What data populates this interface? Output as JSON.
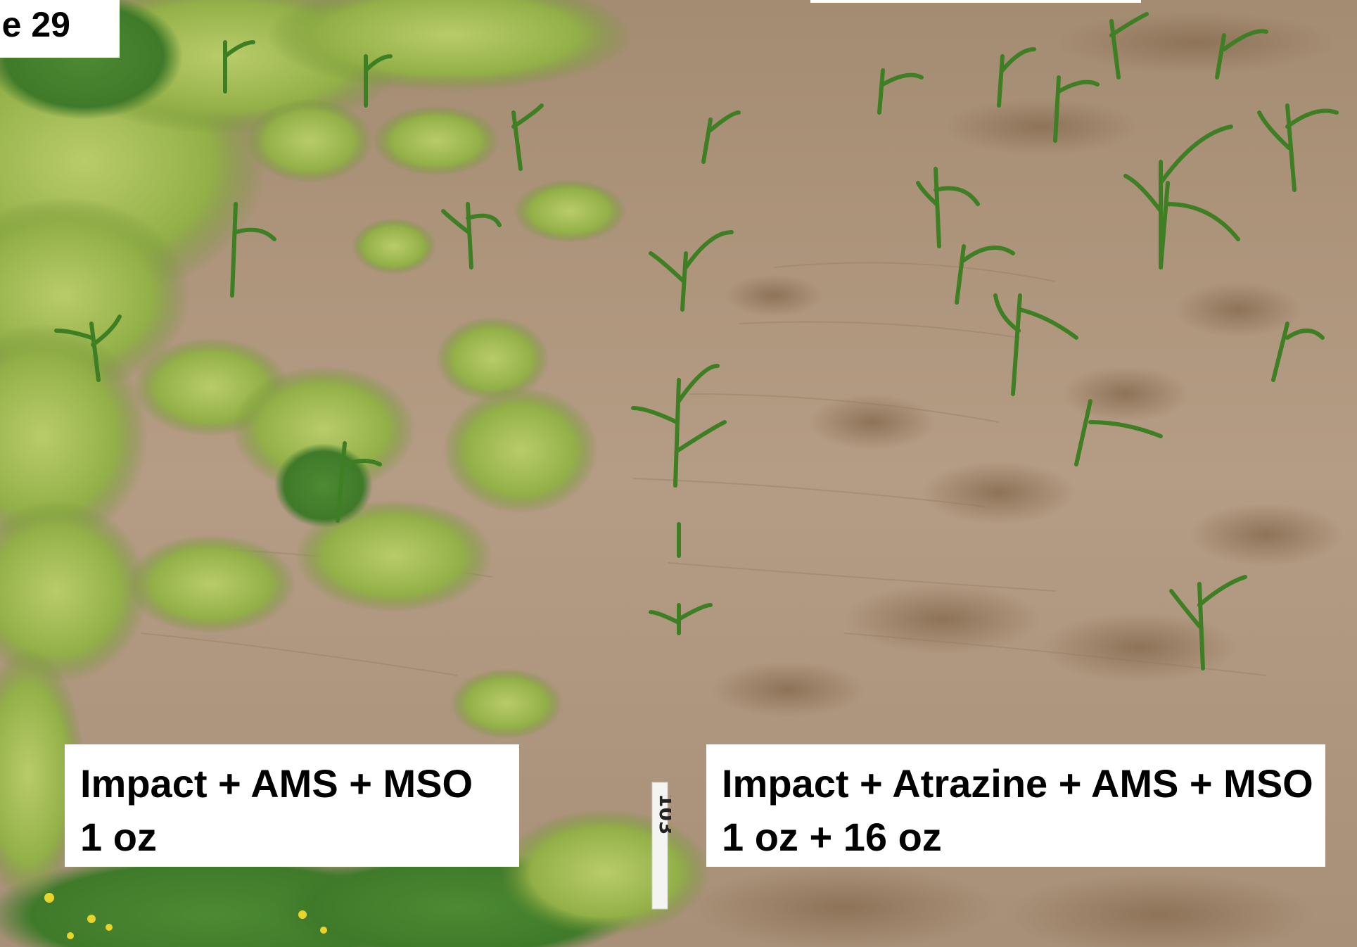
{
  "slide_number_fragment": "e 29",
  "treatments": [
    {
      "product": "Impact + AMS + MSO",
      "rate": "1 oz"
    },
    {
      "product": "Impact + Atrazine + AMS + MSO",
      "rate": "1 oz + 16 oz"
    }
  ],
  "plot_marker": "103",
  "colors": {
    "soil": "#b39a82",
    "weeds": "#9bb84a",
    "corn": "#4f8f2a",
    "label_background": "#ffffff",
    "label_text": "#000000"
  }
}
